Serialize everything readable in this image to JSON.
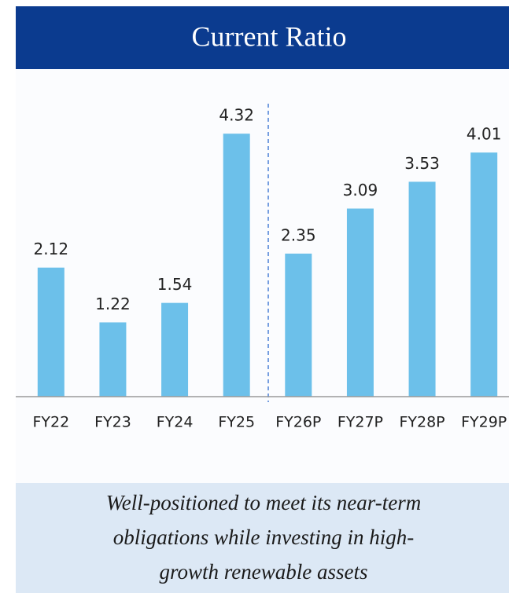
{
  "chart_data": {
    "type": "bar",
    "title": "Current Ratio",
    "categories": [
      "FY22",
      "FY23",
      "FY24",
      "FY25",
      "FY26P",
      "FY27P",
      "FY28P",
      "FY29P"
    ],
    "values": [
      2.12,
      1.22,
      1.54,
      4.32,
      2.35,
      3.09,
      3.53,
      4.01
    ],
    "color": "#6cc0ea",
    "ylim": [
      0,
      5
    ],
    "footer": [
      "Well-positioned to meet its near-term",
      "obligations while investing in high-",
      "growth renewable assets"
    ]
  }
}
